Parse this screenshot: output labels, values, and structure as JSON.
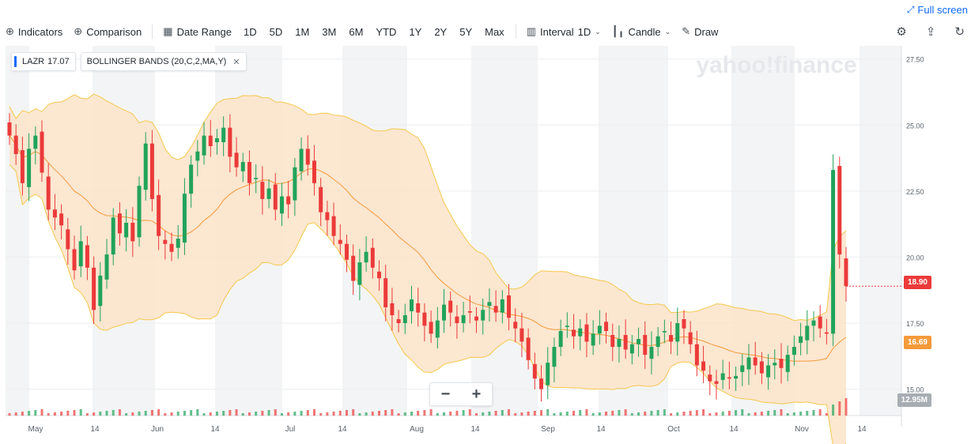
{
  "header": {
    "full_screen_label": "Full screen"
  },
  "toolbar": {
    "indicators_label": "Indicators",
    "comparison_label": "Comparison",
    "date_range_label": "Date Range",
    "ranges": [
      "1D",
      "5D",
      "1M",
      "3M",
      "6M",
      "YTD",
      "1Y",
      "2Y",
      "5Y",
      "Max"
    ],
    "interval_label": "Interval",
    "interval_value": "1D",
    "chart_type_label": "Candle",
    "draw_label": "Draw"
  },
  "legend": {
    "symbol": "LAZR",
    "price": "17.07",
    "indicator": "BOLLINGER BANDS (20,C,2,MA,Y)"
  },
  "watermark": "yahoo!finance",
  "badges": {
    "last_price": "18.90",
    "ma_value": "16.69",
    "volume": "12.95M"
  },
  "colors": {
    "up": "#21a35b",
    "down": "#eb3a3a",
    "band_fill": "#fbe3c9",
    "band_line": "#f5c94c",
    "ma_line": "#f59a3a",
    "price_badge": "#eb3a3a",
    "ma_badge": "#f59a3a",
    "volume_badge": "#a7adb3"
  },
  "chart_data": {
    "type": "candlestick",
    "symbol": "LAZR",
    "x_tick_labels": [
      "May",
      "14",
      "Jun",
      "14",
      "Jul",
      "14",
      "Aug",
      "14",
      "Sep",
      "14",
      "Oct",
      "14",
      "Nov",
      "14"
    ],
    "y_tick_labels": [
      "27.50",
      "25.00",
      "22.50",
      "20.00",
      "17.50",
      "15.00"
    ],
    "ylim": [
      14.0,
      28.0
    ],
    "grid": true,
    "overlay": "Bollinger Bands (20,C,2,MA,Y)",
    "last_price": 18.9,
    "bollinger_mid_last": 16.69,
    "last_volume": "12.95M",
    "closes": [
      24.6,
      23.9,
      22.8,
      24.1,
      24.6,
      23.2,
      21.8,
      21.5,
      21.2,
      20.3,
      19.5,
      20.6,
      19.6,
      18.0,
      19.3,
      20.1,
      21.5,
      20.9,
      21.3,
      20.6,
      22.7,
      24.3,
      22.2,
      20.8,
      20.5,
      20.2,
      20.7,
      22.4,
      23.5,
      24.0,
      24.6,
      24.2,
      24.5,
      24.9,
      23.8,
      23.4,
      23.6,
      22.8,
      23.0,
      22.2,
      22.6,
      21.8,
      22.3,
      22.0,
      23.4,
      24.1,
      23.5,
      22.8,
      21.7,
      21.4,
      20.8,
      20.5,
      19.9,
      19.1,
      19.8,
      20.2,
      19.6,
      19.2,
      18.1,
      17.8,
      17.5,
      17.8,
      18.4,
      17.9,
      17.4,
      17.1,
      17.6,
      18.2,
      17.9,
      17.5,
      17.8,
      17.9,
      17.6,
      18.0,
      18.3,
      17.9,
      18.4,
      17.7,
      17.3,
      16.8,
      16.1,
      15.4,
      15.0,
      16.0,
      16.6,
      17.2,
      17.4,
      17.0,
      17.3,
      16.8,
      17.1,
      17.4,
      17.2,
      16.6,
      16.9,
      16.5,
      16.7,
      16.9,
      16.3,
      16.6,
      17.0,
      17.2,
      16.8,
      17.5,
      17.3,
      16.7,
      15.9,
      15.7,
      15.3,
      15.2,
      15.6,
      15.4,
      15.5,
      15.9,
      16.2,
      15.9,
      15.6,
      15.9,
      16.0,
      15.8,
      16.3,
      16.6,
      17.0,
      17.4,
      17.6,
      17.3,
      17.1,
      23.3,
      20.1,
      18.9
    ],
    "volume_last": "12.95M"
  }
}
